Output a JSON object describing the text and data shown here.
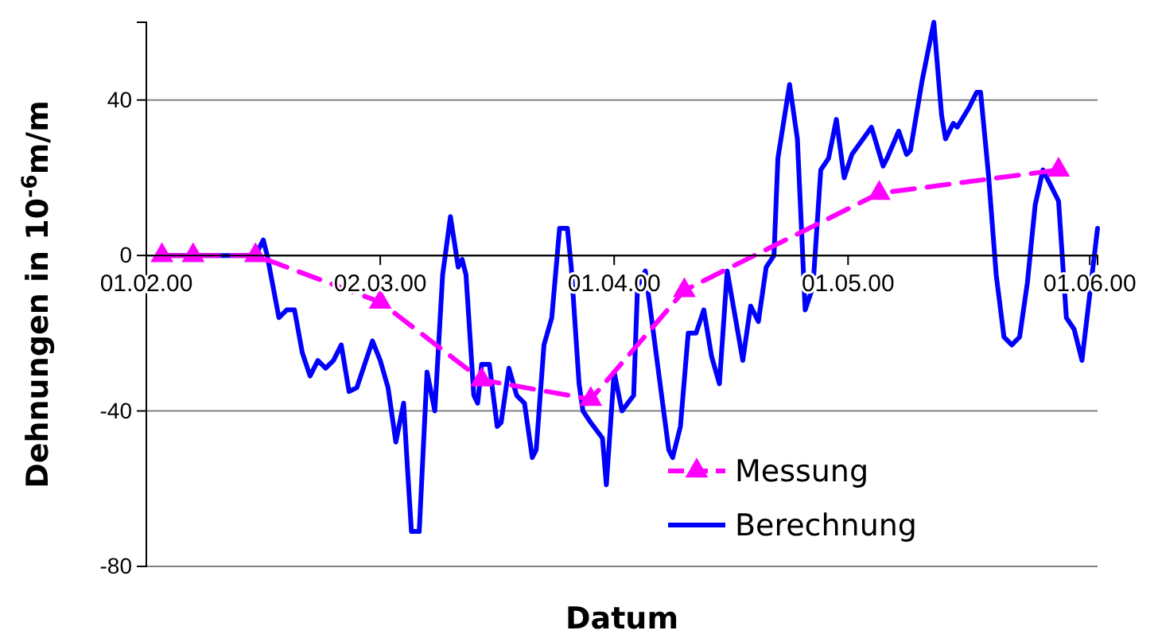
{
  "chart_data": {
    "type": "line",
    "xlabel": "Datum",
    "ylabel": "Dehnungen in 10$^{-6}$m/m",
    "xlim": [
      "2000-02-01",
      "2000-06-02"
    ],
    "xticks": [
      {
        "value": "2000-02-01",
        "label": "01.02.00"
      },
      {
        "value": "2000-03-02",
        "label": "02.03.00"
      },
      {
        "value": "2000-04-01",
        "label": "01.04.00"
      },
      {
        "value": "2000-05-01",
        "label": "01.05.00"
      },
      {
        "value": "2000-06-01",
        "label": "01.06.00"
      }
    ],
    "ylim": [
      -80,
      60
    ],
    "yticks": [
      -80,
      -40,
      0,
      40
    ],
    "grid": "y",
    "legend": "bottom right",
    "series": [
      {
        "name": "Messung",
        "color": "#ff00ff",
        "line_style": "dashed",
        "marker": "triangle",
        "x": [
          "2000-02-03",
          "2000-02-07",
          "2000-02-15",
          "2000-03-02",
          "2000-03-15",
          "2000-03-29",
          "2000-04-10",
          "2000-05-05",
          "2000-05-28"
        ],
        "values": [
          0,
          0,
          0,
          -12,
          -32,
          -37,
          -9,
          16,
          22
        ]
      },
      {
        "name": "Berechnung",
        "color": "#0000ff",
        "line_style": "solid",
        "marker": "none",
        "x": [
          "2000-02-03",
          "2000-02-15",
          "2000-02-16",
          "2000-02-16T12:00",
          "2000-02-18",
          "2000-02-19",
          "2000-02-20",
          "2000-02-21",
          "2000-02-22",
          "2000-02-23",
          "2000-02-24",
          "2000-02-25",
          "2000-02-26",
          "2000-02-27",
          "2000-02-28",
          "2000-03-01",
          "2000-03-02",
          "2000-03-03",
          "2000-03-04",
          "2000-03-05",
          "2000-03-05T12:00",
          "2000-03-06",
          "2000-03-07",
          "2000-03-08",
          "2000-03-09",
          "2000-03-10",
          "2000-03-11",
          "2000-03-12",
          "2000-03-12T12:00",
          "2000-03-13",
          "2000-03-14",
          "2000-03-14T12:00",
          "2000-03-15",
          "2000-03-16",
          "2000-03-17",
          "2000-03-17T12:00",
          "2000-03-18T12:00",
          "2000-03-19T12:00",
          "2000-03-20T12:00",
          "2000-03-21T12:00",
          "2000-03-22",
          "2000-03-23",
          "2000-03-24",
          "2000-03-25",
          "2000-03-26",
          "2000-03-26T12:00",
          "2000-03-27T12:00",
          "2000-03-28",
          "2000-03-29",
          "2000-03-30T12:00",
          "2000-03-31",
          "2000-04-01",
          "2000-04-02",
          "2000-04-03T12:00",
          "2000-04-04",
          "2000-04-05",
          "2000-04-08",
          "2000-04-08T12:00",
          "2000-04-09T12:00",
          "2000-04-10T12:00",
          "2000-04-11T12:00",
          "2000-04-12T12:00",
          "2000-04-13T12:00",
          "2000-04-14T12:00",
          "2000-04-15T12:00",
          "2000-04-17T12:00",
          "2000-04-18T12:00",
          "2000-04-19T12:00",
          "2000-04-20T12:00",
          "2000-04-21T12:00",
          "2000-04-22",
          "2000-04-23T12:00",
          "2000-04-24T12:00",
          "2000-04-25T12:00",
          "2000-04-26T12:00",
          "2000-04-27T12:00",
          "2000-04-28T12:00",
          "2000-04-29T12:00",
          "2000-04-30T12:00",
          "2000-05-01T12:00",
          "2000-05-04",
          "2000-05-05T12:00",
          "2000-05-06",
          "2000-05-07T12:00",
          "2000-05-08T12:00",
          "2000-05-09",
          "2000-05-10T12:00",
          "2000-05-11",
          "2000-05-12",
          "2000-05-13",
          "2000-05-13T12:00",
          "2000-05-14T12:00",
          "2000-05-15",
          "2000-05-16T12:00",
          "2000-05-17T12:00",
          "2000-05-18",
          "2000-05-19",
          "2000-05-20",
          "2000-05-21",
          "2000-05-22",
          "2000-05-23",
          "2000-05-24",
          "2000-05-25",
          "2000-05-26",
          "2000-05-28",
          "2000-05-29",
          "2000-05-30",
          "2000-05-31",
          "2000-06-02"
        ],
        "values": [
          0,
          0,
          4,
          0,
          -16,
          -14,
          -14,
          -25,
          -31,
          -27,
          -29,
          -27,
          -23,
          -35,
          -34,
          -22,
          -27,
          -34,
          -48,
          -38,
          -55,
          -71,
          -71,
          -30,
          -40,
          -5,
          10,
          -3,
          -1,
          -5,
          -36,
          -38,
          -28,
          -28,
          -44,
          -43,
          -29,
          -36,
          -38,
          -52,
          -50,
          -23,
          -16,
          7,
          7,
          -3,
          -33,
          -40,
          -43,
          -47,
          -59,
          -30,
          -40,
          -36,
          -8,
          -4,
          -50,
          -52,
          -44,
          -20,
          -20,
          -14,
          -26,
          -33,
          -4,
          -27,
          -13,
          -17,
          -3,
          0,
          25,
          44,
          30,
          -14,
          -8,
          22,
          25,
          35,
          20,
          26,
          33,
          23,
          25,
          32,
          26,
          27,
          45,
          50,
          60,
          36,
          30,
          34,
          33,
          38,
          42,
          42,
          21,
          -5,
          -21,
          -23,
          -21,
          -7,
          13,
          22,
          14,
          -16,
          -19,
          -27,
          7
        ]
      }
    ]
  }
}
